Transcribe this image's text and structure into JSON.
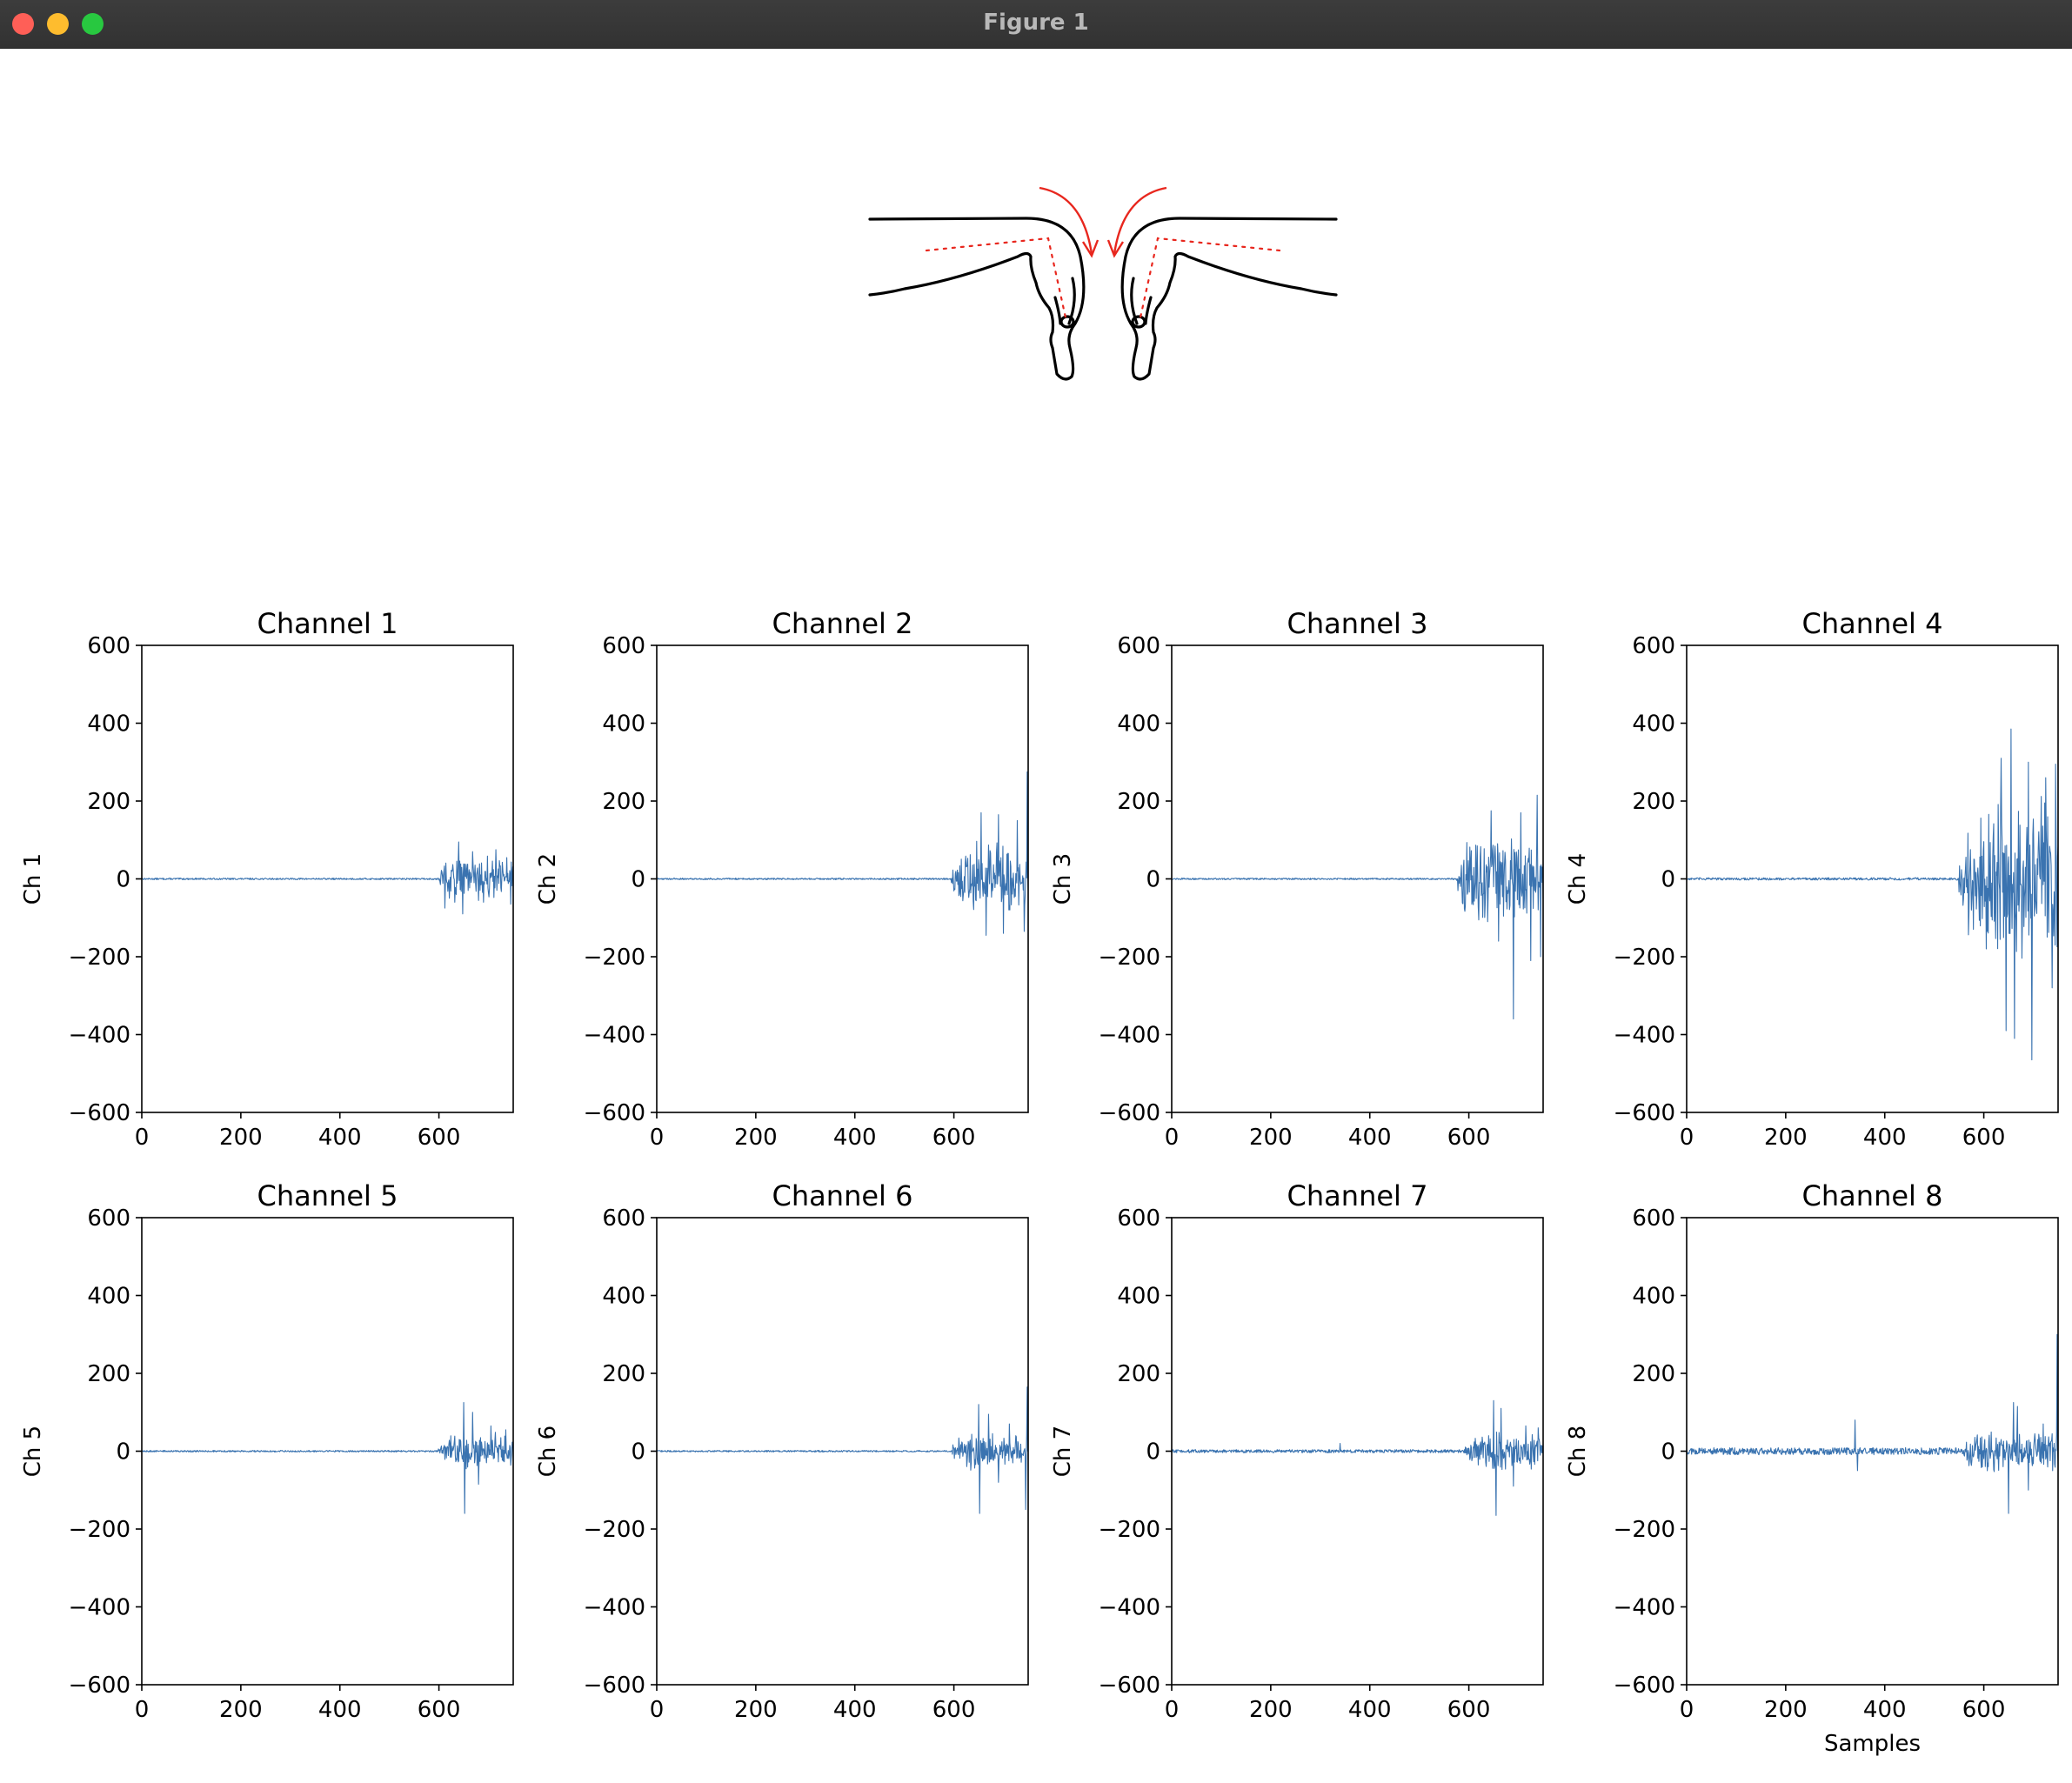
{
  "window": {
    "title": "Figure 1",
    "controls": [
      "close",
      "minimize",
      "maximize"
    ]
  },
  "illustration": {
    "icon": "hands-wrist-flexion-icon",
    "line_color": "#000000",
    "arrow_color": "#e8271e"
  },
  "chart_data": [
    {
      "type": "line",
      "title": "Channel 1",
      "ylabel": "Ch 1",
      "xlabel": "",
      "xlim": [
        0,
        750
      ],
      "ylim": [
        -600,
        600
      ],
      "x_ticks": [
        "0",
        "200",
        "400",
        "600"
      ],
      "y_ticks": [
        "600",
        "400",
        "200",
        "0",
        "−200",
        "−400",
        "−600"
      ],
      "color": "#3a73b0",
      "baseline_noise": 2,
      "onset": 598,
      "burst_amplitude": 55,
      "bursts": [
        [
          612,
          -75
        ],
        [
          640,
          95
        ],
        [
          648,
          -90
        ],
        [
          668,
          70
        ],
        [
          690,
          -60
        ],
        [
          715,
          75
        ],
        [
          745,
          -65
        ]
      ],
      "grid": false
    },
    {
      "type": "line",
      "title": "Channel 2",
      "ylabel": "Ch 2",
      "xlabel": "",
      "xlim": [
        0,
        750
      ],
      "ylim": [
        -600,
        600
      ],
      "x_ticks": [
        "0",
        "200",
        "400",
        "600"
      ],
      "y_ticks": [
        "600",
        "400",
        "200",
        "0",
        "−200",
        "−400",
        "−600"
      ],
      "color": "#3a73b0",
      "baseline_noise": 2,
      "onset": 595,
      "burst_amplitude": 95,
      "bursts": [
        [
          655,
          170
        ],
        [
          665,
          -145
        ],
        [
          690,
          165
        ],
        [
          700,
          -140
        ],
        [
          728,
          150
        ],
        [
          748,
          275
        ],
        [
          742,
          -135
        ]
      ],
      "grid": false
    },
    {
      "type": "line",
      "title": "Channel 3",
      "ylabel": "Ch 3",
      "xlabel": "",
      "xlim": [
        0,
        750
      ],
      "ylim": [
        -600,
        600
      ],
      "x_ticks": [
        "0",
        "200",
        "400",
        "600"
      ],
      "y_ticks": [
        "600",
        "400",
        "200",
        "0",
        "−200",
        "−400",
        "−600"
      ],
      "color": "#3a73b0",
      "baseline_noise": 2,
      "onset": 575,
      "burst_amplitude": 110,
      "bursts": [
        [
          645,
          175
        ],
        [
          660,
          -160
        ],
        [
          690,
          -360
        ],
        [
          705,
          170
        ],
        [
          725,
          -210
        ],
        [
          738,
          215
        ],
        [
          745,
          -200
        ]
      ],
      "grid": false
    },
    {
      "type": "line",
      "title": "Channel 4",
      "ylabel": "Ch 4",
      "xlabel": "",
      "xlim": [
        0,
        750
      ],
      "ylim": [
        -600,
        600
      ],
      "x_ticks": [
        "0",
        "200",
        "400",
        "600"
      ],
      "y_ticks": [
        "600",
        "400",
        "200",
        "0",
        "−200",
        "−400",
        "−600"
      ],
      "color": "#3a73b0",
      "baseline_noise": 3,
      "onset": 550,
      "burst_amplitude": 190,
      "bursts": [
        [
          605,
          -180
        ],
        [
          635,
          310
        ],
        [
          645,
          -390
        ],
        [
          655,
          385
        ],
        [
          662,
          -410
        ],
        [
          690,
          300
        ],
        [
          697,
          -465
        ],
        [
          725,
          260
        ],
        [
          738,
          -280
        ],
        [
          745,
          295
        ]
      ],
      "grid": false
    },
    {
      "type": "line",
      "title": "Channel 5",
      "ylabel": "Ch 5",
      "xlabel": "",
      "xlim": [
        0,
        750
      ],
      "ylim": [
        -600,
        600
      ],
      "x_ticks": [
        "0",
        "200",
        "400",
        "600"
      ],
      "y_ticks": [
        "600",
        "400",
        "200",
        "0",
        "−200",
        "−400",
        "−600"
      ],
      "color": "#3a73b0",
      "baseline_noise": 2,
      "onset": 598,
      "burst_amplitude": 45,
      "bursts": [
        [
          650,
          125
        ],
        [
          652,
          -160
        ],
        [
          668,
          100
        ],
        [
          680,
          -85
        ],
        [
          705,
          65
        ],
        [
          735,
          55
        ]
      ],
      "grid": false
    },
    {
      "type": "line",
      "title": "Channel 6",
      "ylabel": "Ch 6",
      "xlabel": "",
      "xlim": [
        0,
        750
      ],
      "ylim": [
        -600,
        600
      ],
      "x_ticks": [
        "0",
        "200",
        "400",
        "600"
      ],
      "y_ticks": [
        "600",
        "400",
        "200",
        "0",
        "−200",
        "−400",
        "−600"
      ],
      "color": "#3a73b0",
      "baseline_noise": 2,
      "onset": 595,
      "burst_amplitude": 45,
      "bursts": [
        [
          650,
          120
        ],
        [
          652,
          -160
        ],
        [
          670,
          95
        ],
        [
          690,
          -80
        ],
        [
          712,
          70
        ],
        [
          748,
          165
        ],
        [
          745,
          -150
        ]
      ],
      "grid": false
    },
    {
      "type": "line",
      "title": "Channel 7",
      "ylabel": "Ch 7",
      "xlabel": "",
      "xlim": [
        0,
        750
      ],
      "ylim": [
        -600,
        600
      ],
      "x_ticks": [
        "0",
        "200",
        "400",
        "600"
      ],
      "y_ticks": [
        "600",
        "400",
        "200",
        "0",
        "−200",
        "−400",
        "−600"
      ],
      "color": "#3a73b0",
      "baseline_noise": 4,
      "onset": 590,
      "burst_amplitude": 50,
      "bursts": [
        [
          340,
          20
        ],
        [
          650,
          130
        ],
        [
          655,
          -165
        ],
        [
          665,
          110
        ],
        [
          690,
          -90
        ],
        [
          715,
          65
        ],
        [
          740,
          60
        ]
      ],
      "grid": false
    },
    {
      "type": "line",
      "title": "Channel 8",
      "ylabel": "Ch 8",
      "xlabel": "Samples",
      "xlim": [
        0,
        750
      ],
      "ylim": [
        -600,
        600
      ],
      "x_ticks": [
        "0",
        "200",
        "400",
        "600"
      ],
      "y_ticks": [
        "600",
        "400",
        "200",
        "0",
        "−200",
        "−400",
        "−600"
      ],
      "color": "#3a73b0",
      "baseline_noise": 9,
      "onset": 560,
      "burst_amplitude": 55,
      "bursts": [
        [
          340,
          80
        ],
        [
          345,
          -50
        ],
        [
          650,
          -160
        ],
        [
          660,
          125
        ],
        [
          668,
          115
        ],
        [
          690,
          -100
        ],
        [
          720,
          70
        ],
        [
          748,
          300
        ]
      ],
      "grid": false
    }
  ]
}
